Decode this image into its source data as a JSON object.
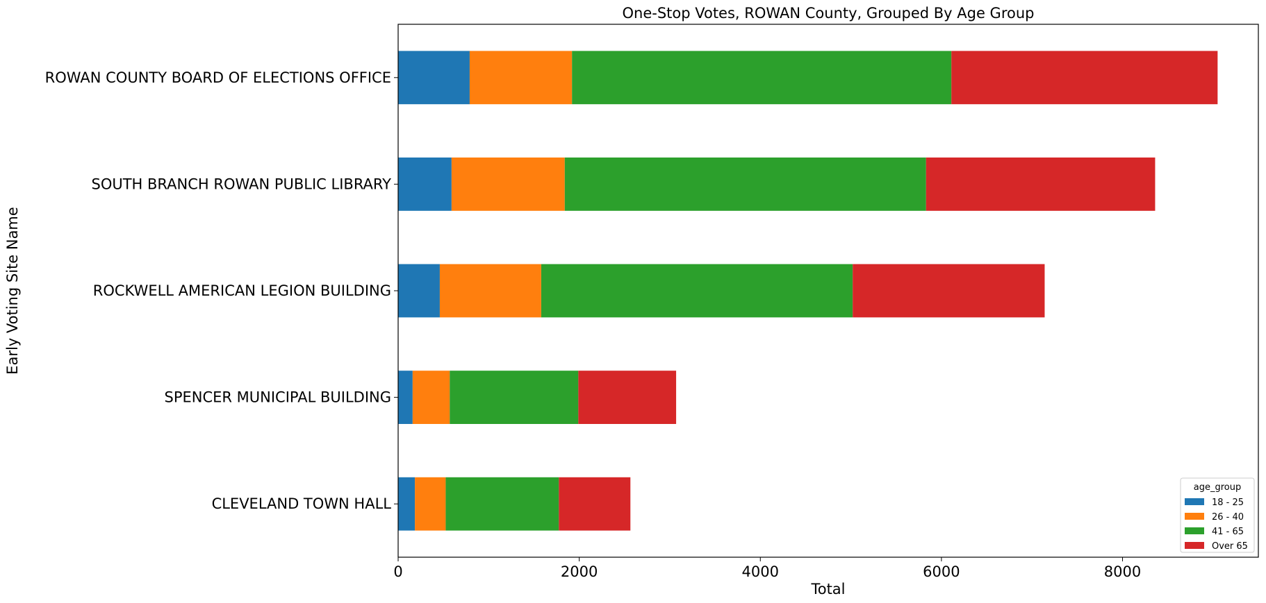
{
  "chart_data": {
    "type": "bar",
    "orientation": "horizontal",
    "stacked": true,
    "title": "One-Stop Votes, ROWAN County, Grouped By Age Group",
    "xlabel": "Total",
    "ylabel": "Early Voting Site Name",
    "xlim": [
      0,
      9500
    ],
    "xticks": [
      0,
      2000,
      4000,
      6000,
      8000
    ],
    "grid": false,
    "legend_title": "age_group",
    "legend_position": "lower-right",
    "categories": [
      "ROWAN COUNTY BOARD OF ELECTIONS OFFICE",
      "SOUTH BRANCH ROWAN PUBLIC LIBRARY",
      "ROCKWELL AMERICAN LEGION BUILDING",
      "SPENCER MUNICIPAL BUILDING",
      "CLEVELAND TOWN HALL"
    ],
    "series": [
      {
        "name": "18 - 25",
        "color": "#1f77b4",
        "values": [
          790,
          590,
          460,
          160,
          185
        ]
      },
      {
        "name": "26 - 40",
        "color": "#ff7f0e",
        "values": [
          1130,
          1250,
          1120,
          410,
          340
        ]
      },
      {
        "name": "41 - 65",
        "color": "#2ca02c",
        "values": [
          4190,
          3990,
          3440,
          1420,
          1250
        ]
      },
      {
        "name": "Over 65",
        "color": "#d62728",
        "values": [
          2940,
          2530,
          2120,
          1080,
          790
        ]
      }
    ]
  }
}
